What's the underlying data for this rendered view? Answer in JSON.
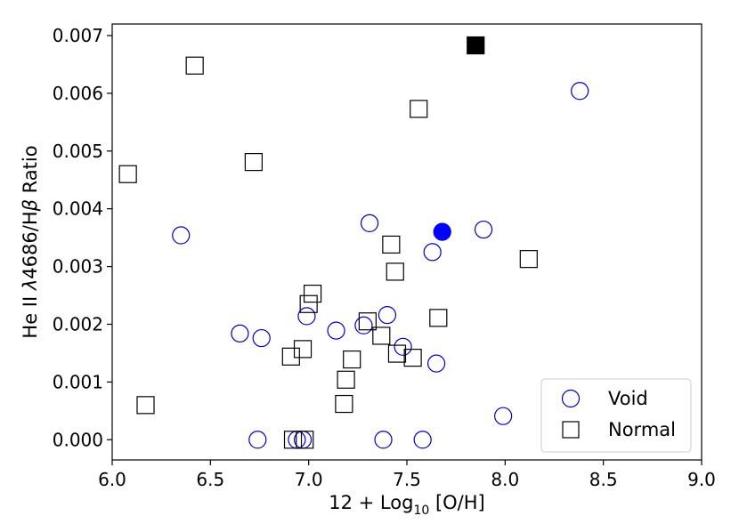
{
  "chart_data": {
    "type": "scatter",
    "title": "",
    "xlabel": {
      "pre": "12 + Log",
      "sub": "10",
      "post": " [O/H]"
    },
    "ylabel": {
      "pre": "He II ",
      "lambda": "λ",
      "mid": "4686/H",
      "beta": "β",
      "post": " Ratio"
    },
    "xlim": [
      6.0,
      9.0
    ],
    "ylim": [
      -0.00035,
      0.0072
    ],
    "xticks": [
      6.0,
      6.5,
      7.0,
      7.5,
      8.0,
      8.5,
      9.0
    ],
    "xtick_labels": [
      "6.0",
      "6.5",
      "7.0",
      "7.5",
      "8.0",
      "8.5",
      "9.0"
    ],
    "yticks": [
      0.0,
      0.001,
      0.002,
      0.003,
      0.004,
      0.005,
      0.006,
      0.007
    ],
    "ytick_labels": [
      "0.000",
      "0.001",
      "0.002",
      "0.003",
      "0.004",
      "0.005",
      "0.006",
      "0.007"
    ],
    "grid": false,
    "legend_position": "bottom-right",
    "series": [
      {
        "name": "Void",
        "marker": "circle",
        "color": "#0000cc",
        "filled": false,
        "points": [
          [
            8.38,
            0.00604
          ],
          [
            7.89,
            0.00364
          ],
          [
            7.31,
            0.00375
          ],
          [
            6.35,
            0.00354
          ],
          [
            7.63,
            0.00325
          ],
          [
            6.99,
            0.00214
          ],
          [
            7.4,
            0.00216
          ],
          [
            7.28,
            0.00198
          ],
          [
            7.14,
            0.00189
          ],
          [
            6.65,
            0.00184
          ],
          [
            6.76,
            0.00176
          ],
          [
            7.48,
            0.00161
          ],
          [
            7.65,
            0.00132
          ],
          [
            7.99,
            0.00041
          ],
          [
            6.74,
            0.0
          ],
          [
            6.94,
            0.0
          ],
          [
            6.97,
            0.0
          ],
          [
            7.38,
            0.0
          ],
          [
            7.58,
            0.0
          ]
        ]
      },
      {
        "name": "Normal",
        "marker": "square",
        "color": "#000000",
        "filled": false,
        "points": [
          [
            6.42,
            0.00648
          ],
          [
            7.56,
            0.00573
          ],
          [
            6.72,
            0.00481
          ],
          [
            6.08,
            0.0046
          ],
          [
            7.42,
            0.00338
          ],
          [
            8.12,
            0.00313
          ],
          [
            7.44,
            0.00291
          ],
          [
            7.02,
            0.00253
          ],
          [
            7.0,
            0.00235
          ],
          [
            7.3,
            0.00205
          ],
          [
            7.66,
            0.00211
          ],
          [
            7.37,
            0.0018
          ],
          [
            6.97,
            0.00157
          ],
          [
            7.45,
            0.00149
          ],
          [
            6.91,
            0.00144
          ],
          [
            7.53,
            0.00142
          ],
          [
            7.22,
            0.00139
          ],
          [
            7.19,
            0.00104
          ],
          [
            7.18,
            0.00062
          ],
          [
            6.17,
            0.0006
          ],
          [
            6.92,
            0.0
          ],
          [
            6.98,
            0.0
          ]
        ]
      },
      {
        "marker": "circle",
        "color": "#0000ff",
        "filled": true,
        "points": [
          [
            7.68,
            0.0036
          ]
        ]
      },
      {
        "marker": "square",
        "color": "#000000",
        "filled": true,
        "points": [
          [
            7.85,
            0.00683
          ]
        ]
      }
    ],
    "legend": [
      {
        "label": "Void",
        "marker": "circle",
        "color": "#0000cc"
      },
      {
        "label": "Normal",
        "marker": "square",
        "color": "#000000"
      }
    ]
  }
}
